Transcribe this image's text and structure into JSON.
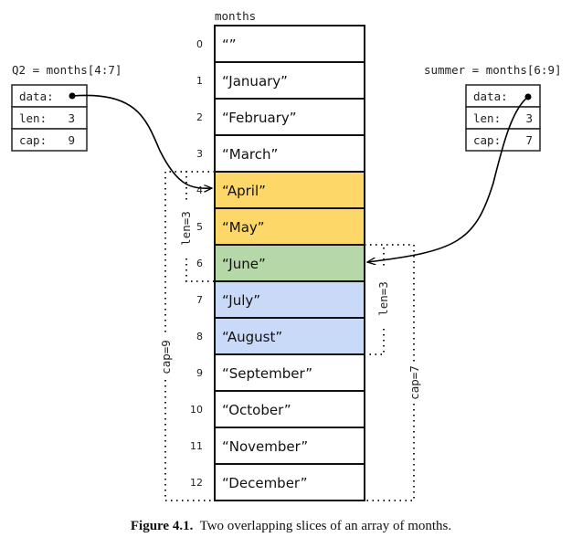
{
  "array": {
    "name": "months",
    "cells": [
      {
        "index": "0",
        "value": "“”",
        "color": "#ffffff"
      },
      {
        "index": "1",
        "value": "“January”",
        "color": "#ffffff"
      },
      {
        "index": "2",
        "value": "“February”",
        "color": "#ffffff"
      },
      {
        "index": "3",
        "value": "“March”",
        "color": "#ffffff"
      },
      {
        "index": "4",
        "value": "“April”",
        "color": "#fdd868"
      },
      {
        "index": "5",
        "value": "“May”",
        "color": "#fdd868"
      },
      {
        "index": "6",
        "value": "“June”",
        "color": "#b6d7a8"
      },
      {
        "index": "7",
        "value": "“July”",
        "color": "#c9daf8"
      },
      {
        "index": "8",
        "value": "“August”",
        "color": "#c9daf8"
      },
      {
        "index": "9",
        "value": "“September”",
        "color": "#ffffff"
      },
      {
        "index": "10",
        "value": "“October”",
        "color": "#ffffff"
      },
      {
        "index": "11",
        "value": "“November”",
        "color": "#ffffff"
      },
      {
        "index": "12",
        "value": "“December”",
        "color": "#ffffff"
      }
    ]
  },
  "q2": {
    "label": "Q2 = months[4:7]",
    "data_label": "data:",
    "len_label": "len:",
    "len_value": "3",
    "cap_label": "cap:",
    "cap_value": "9",
    "len_bracket": "len=3",
    "cap_bracket": "cap=9"
  },
  "summer": {
    "label": "summer = months[6:9]",
    "data_label": "data:",
    "len_label": "len:",
    "len_value": "3",
    "cap_label": "cap:",
    "cap_value": "7",
    "len_bracket": "len=3",
    "cap_bracket": "cap=7"
  },
  "caption": {
    "figure": "Figure 4.1.",
    "text": "Two overlapping slices of an array of months."
  }
}
